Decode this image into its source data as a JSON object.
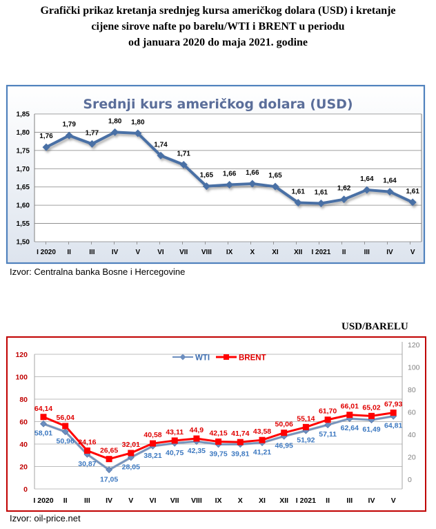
{
  "header": {
    "title_lines": [
      "Grafički prikaz kretanja srednjeg kursa američkog dolara (USD) i kretanje",
      "cijene sirove nafte po barelu/WTI i BRENT u periodu",
      "od januara 2020 do maja 2021. godine"
    ]
  },
  "source1": "Izvor: Centralna banka Bosne i Hercegovine",
  "source2": "Izvor: oil-price.net",
  "unit_label": "USD/BARELU",
  "chart_data": [
    {
      "type": "line",
      "title": "Srednji kurs američkog dolara (USD)",
      "categories": [
        "I 2020",
        "II",
        "III",
        "IV",
        "V",
        "VI",
        "VII",
        "VIII",
        "IX",
        "X",
        "XI",
        "XII",
        "I 2021",
        "II",
        "III",
        "IV",
        "V"
      ],
      "series": [
        {
          "values": [
            1.76,
            1.79,
            1.77,
            1.8,
            1.8,
            1.74,
            1.71,
            1.65,
            1.66,
            1.66,
            1.65,
            1.61,
            1.61,
            1.62,
            1.64,
            1.64,
            1.61
          ],
          "plotted": [
            1.759,
            1.791,
            1.768,
            1.8,
            1.797,
            1.736,
            1.711,
            1.652,
            1.656,
            1.659,
            1.651,
            1.607,
            1.605,
            1.616,
            1.642,
            1.637,
            1.608
          ],
          "labels": [
            "1,76",
            "1,79",
            "1,77",
            "1,80",
            "1,80",
            "1,74",
            "1,71",
            "1,65",
            "1,66",
            "1,66",
            "1,65",
            "1,61",
            "1,61",
            "1,62",
            "1,64",
            "1,64",
            "1,61"
          ]
        }
      ],
      "yticks": [
        "1,85",
        "1,80",
        "1,75",
        "1,70",
        "1,65",
        "1,60",
        "1,55",
        "1,50"
      ],
      "ylim": [
        1.5,
        1.85
      ],
      "grid": true,
      "line_color": "#4a6fa5",
      "border_color": "#4f81bd"
    },
    {
      "type": "line",
      "categories": [
        "I 2020",
        "II",
        "III",
        "IV",
        "V",
        "VI",
        "VII",
        "VIII",
        "IX",
        "X",
        "XI",
        "XII",
        "I 2021",
        "II",
        "III",
        "IV",
        "V"
      ],
      "series": [
        {
          "name": "WTI",
          "color": "#6c8ebf",
          "values": [
            58.01,
            50.96,
            30.87,
            17.05,
            28.05,
            38.21,
            40.75,
            42.35,
            39.75,
            39.81,
            41.21,
            46.95,
            51.92,
            57.11,
            62.64,
            61.49,
            64.81
          ],
          "labels": [
            "58,01",
            "50,96",
            "30,87",
            "17,05",
            "28,05",
            "38,21",
            "40,75",
            "42,35",
            "39,75",
            "39,81",
            "41,21",
            "46,95",
            "51,92",
            "57,11",
            "62,64",
            "61,49",
            "64,81"
          ]
        },
        {
          "name": "BRENT",
          "color": "#ff0000",
          "values": [
            64.14,
            56.04,
            34.16,
            26.65,
            32.01,
            40.58,
            43.11,
            44.9,
            42.15,
            41.74,
            43.58,
            50.06,
            55.14,
            61.7,
            66.01,
            65.02,
            67.93
          ],
          "labels": [
            "64,14",
            "56,04",
            "34,16",
            "26,65",
            "32,01",
            "40,58",
            "43,11",
            "44,9",
            "42,15",
            "41,74",
            "43,58",
            "50,06",
            "55,14",
            "61,70",
            "66,01",
            "65,02",
            "67,93"
          ]
        }
      ],
      "yticks_left": [
        "120",
        "100",
        "80",
        "60",
        "40",
        "20",
        "0"
      ],
      "yticks_right": [
        "120",
        "100",
        "80",
        "60",
        "40",
        "20",
        "0"
      ],
      "ylim": [
        0,
        120
      ],
      "grid": true,
      "legend": "top-center",
      "border_color": "#c00000"
    }
  ]
}
